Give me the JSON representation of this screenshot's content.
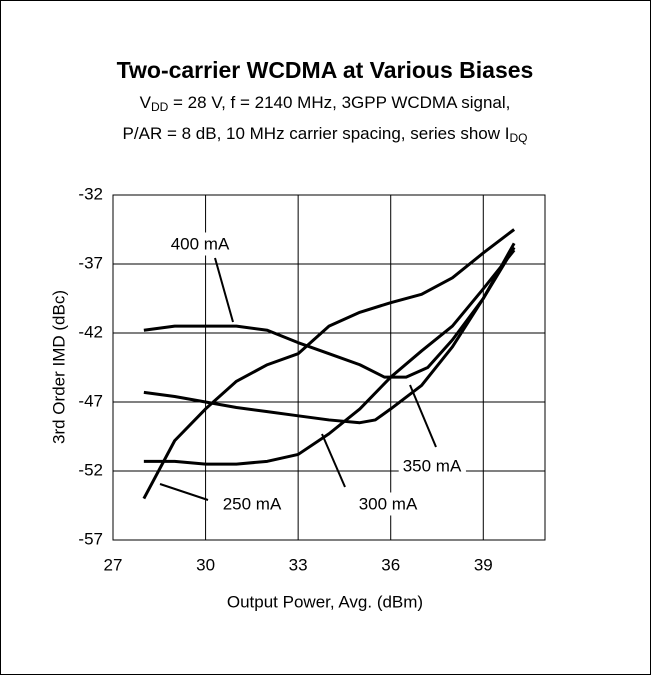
{
  "chart_data": {
    "type": "line",
    "title": "Two-carrier WCDMA at Various Biases",
    "subtitle": [
      [
        {
          "text": "V"
        },
        {
          "text": "DD",
          "sub": true
        },
        {
          "text": " = 28 V, f = 2140 MHz, 3GPP WCDMA signal,"
        }
      ],
      [
        {
          "text": "P/AR = 8 dB, 10 MHz carrier spacing, series show I"
        },
        {
          "text": "DQ",
          "sub": true
        }
      ]
    ],
    "x_label": "Output Power, Avg. (dBm)",
    "y_label": "3rd Order IMD (dBc)",
    "xlim": [
      27,
      41
    ],
    "xticks": [
      27,
      30,
      33,
      36,
      39
    ],
    "ylim": [
      -57,
      -32
    ],
    "yticks": [
      -57,
      -52,
      -47,
      -42,
      -37,
      -32
    ],
    "grid": true,
    "series": [
      {
        "name": "400 mA",
        "color": "#000000",
        "x": [
          28,
          29,
          31,
          32,
          33,
          34,
          35,
          35.8,
          36.5,
          37.2,
          38,
          39,
          40
        ],
        "values": [
          -41.8,
          -41.5,
          -41.5,
          -41.8,
          -42.7,
          -43.5,
          -44.3,
          -45.2,
          -45.2,
          -44.5,
          -42.5,
          -39.5,
          -35.5
        ]
      },
      {
        "name": "250 mA",
        "color": "#000000",
        "x": [
          28,
          29,
          30,
          31,
          32,
          33,
          34,
          35,
          36,
          37,
          38,
          39,
          40
        ],
        "values": [
          -54,
          -49.8,
          -47.5,
          -45.5,
          -44.3,
          -43.5,
          -41.5,
          -40.5,
          -39.8,
          -39.2,
          -38,
          -36.2,
          -34.5
        ]
      },
      {
        "name": "350 mA",
        "color": "#000000",
        "x": [
          28,
          29,
          30,
          31,
          32,
          33,
          34,
          35,
          35.5,
          36,
          37,
          38,
          39,
          40
        ],
        "values": [
          -46.3,
          -46.6,
          -47,
          -47.4,
          -47.7,
          -48,
          -48.3,
          -48.5,
          -48.3,
          -47.5,
          -45.8,
          -43,
          -39.5,
          -35.8
        ]
      },
      {
        "name": "300 mA",
        "color": "#000000",
        "x": [
          28,
          29,
          30,
          31,
          32,
          33,
          34,
          35,
          36,
          37,
          38,
          39,
          40
        ],
        "values": [
          -51.3,
          -51.3,
          -51.5,
          -51.5,
          -51.3,
          -50.8,
          -49.3,
          -47.5,
          -45.2,
          -43.3,
          -41.5,
          -38.8,
          -36
        ]
      }
    ]
  }
}
